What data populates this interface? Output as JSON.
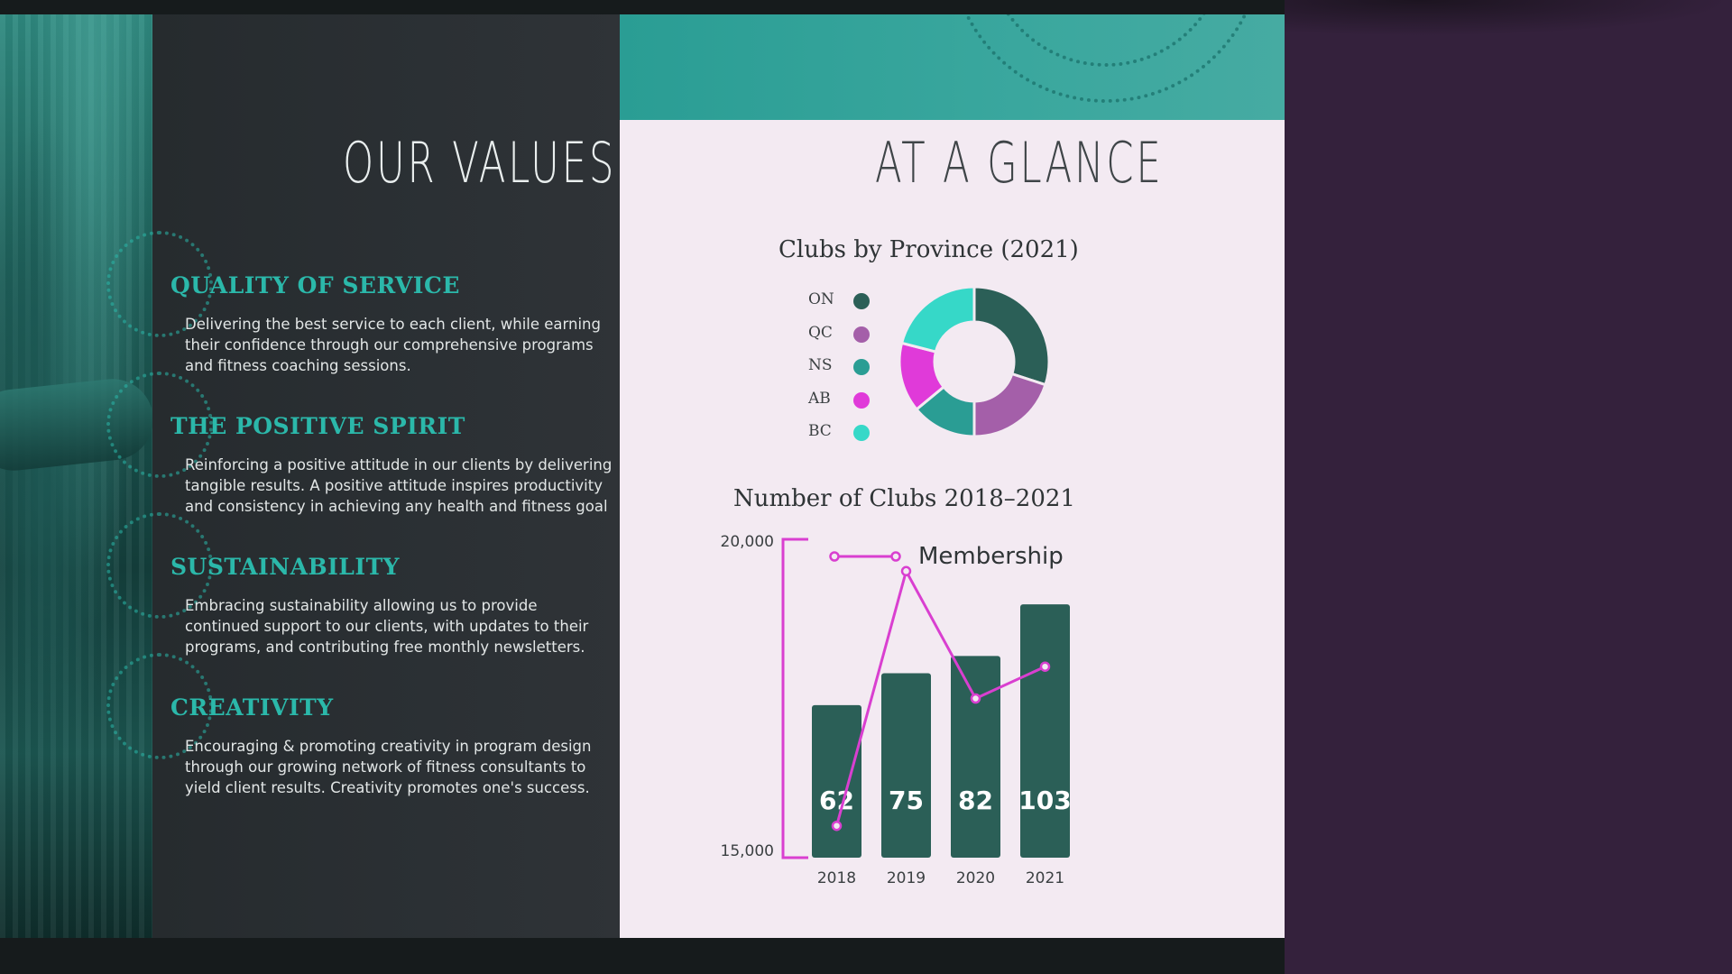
{
  "left": {
    "title": "OUR VALUES",
    "values": [
      {
        "heading": "QUALITY OF SERVICE",
        "lines": [
          "Delivering the best service to each client, while earning",
          "their confidence through our comprehensive programs",
          "and fitness coaching sessions."
        ]
      },
      {
        "heading": "THE POSITIVE SPIRIT",
        "lines": [
          "Reinforcing a positive attitude in our clients by delivering",
          "tangible results. A positive attitude inspires productivity",
          "and consistency in achieving any health and fitness goal"
        ]
      },
      {
        "heading": "SUSTAINABILITY",
        "lines": [
          "Embracing sustainability allowing us to provide",
          "continued support to our clients, with updates to their",
          "programs, and contributing free monthly newsletters."
        ]
      },
      {
        "heading": "CREATIVITY",
        "lines": [
          "Encouraging & promoting creativity in program design",
          "through our growing network of fitness consultants to",
          "yield client results. Creativity promotes one's success."
        ]
      }
    ]
  },
  "right": {
    "title": "AT A GLANCE"
  },
  "colors": {
    "accent_teal": "#2bb8aa",
    "line_magenta": "#d93fd0",
    "bar": "#2b5f57"
  },
  "chart_data": [
    {
      "type": "pie",
      "title": "Clubs by Province (2021)",
      "categories": [
        "ON",
        "QC",
        "NS",
        "AB",
        "BC"
      ],
      "values": [
        30,
        20,
        14,
        15,
        21
      ],
      "colors": [
        "#2b5f57",
        "#a45fa9",
        "#2a9d94",
        "#e03ad9",
        "#36d8c8"
      ],
      "legend_position": "left"
    },
    {
      "type": "bar",
      "title": "Number of Clubs 2018–2021",
      "categories": [
        "2018",
        "2019",
        "2020",
        "2021"
      ],
      "values": [
        62,
        75,
        82,
        103
      ],
      "value_labels": [
        "62",
        "75",
        "82",
        "103"
      ],
      "ymax": 110,
      "line_series": {
        "name": "Membership",
        "values": [
          15500,
          19500,
          17500,
          18000
        ],
        "ylim": [
          15000,
          20000
        ],
        "tick_labels": [
          "20,000",
          "15,000"
        ]
      },
      "legend_position": "top-right"
    }
  ]
}
